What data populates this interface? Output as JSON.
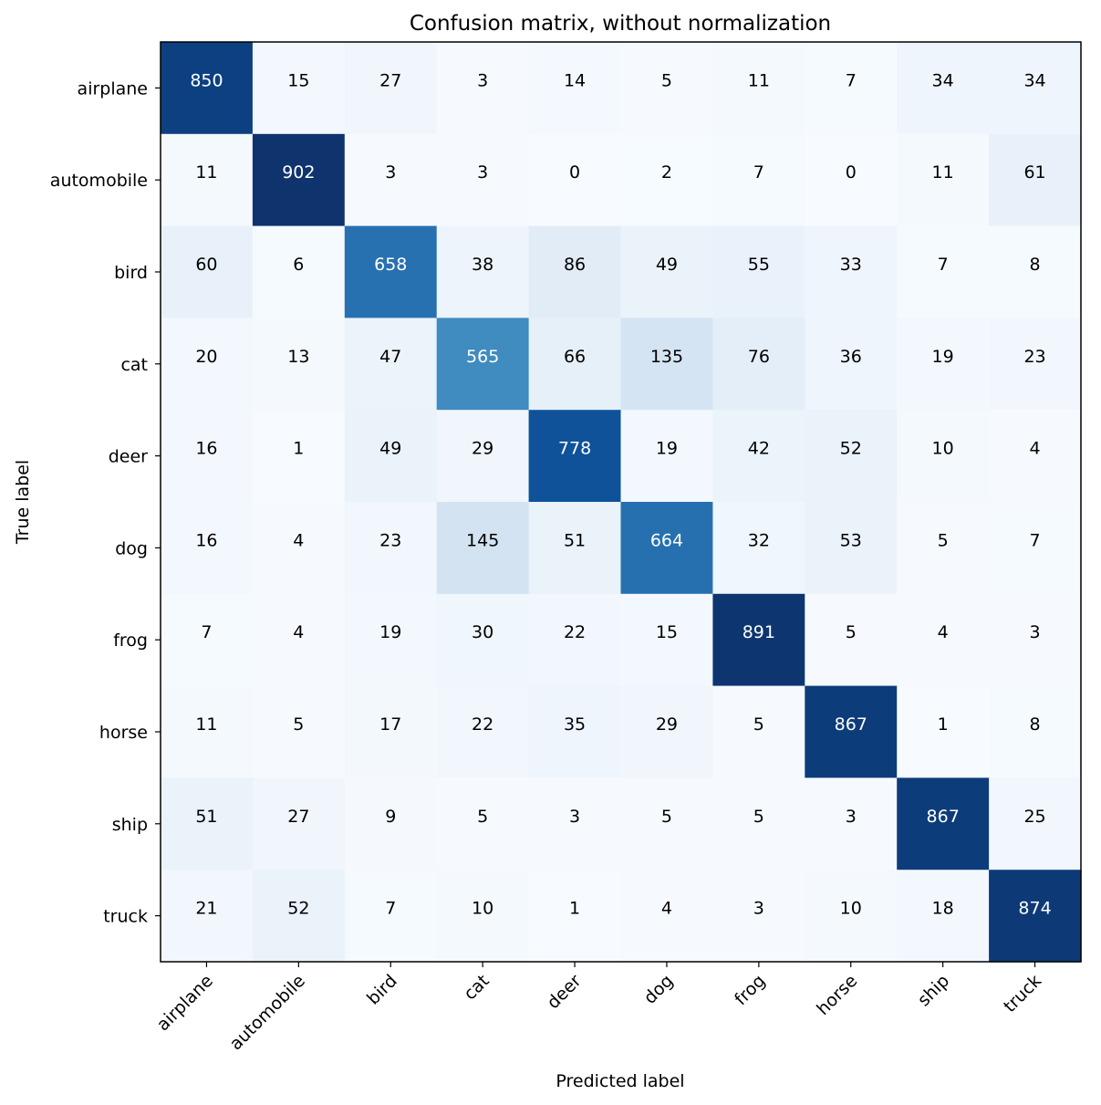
{
  "chart_data": {
    "type": "heatmap",
    "title": "Confusion matrix, without normalization",
    "xlabel": "Predicted label",
    "ylabel": "True label",
    "row_labels": [
      "airplane",
      "automobile",
      "bird",
      "cat",
      "deer",
      "dog",
      "frog",
      "horse",
      "ship",
      "truck"
    ],
    "col_labels": [
      "airplane",
      "automobile",
      "bird",
      "cat",
      "deer",
      "dog",
      "frog",
      "horse",
      "ship",
      "truck"
    ],
    "values": [
      [
        850,
        15,
        27,
        3,
        14,
        5,
        11,
        7,
        34,
        34
      ],
      [
        11,
        902,
        3,
        3,
        0,
        2,
        7,
        0,
        11,
        61
      ],
      [
        60,
        6,
        658,
        38,
        86,
        49,
        55,
        33,
        7,
        8
      ],
      [
        20,
        13,
        47,
        565,
        66,
        135,
        76,
        36,
        19,
        23
      ],
      [
        16,
        1,
        49,
        29,
        778,
        19,
        42,
        52,
        10,
        4
      ],
      [
        16,
        4,
        23,
        145,
        51,
        664,
        32,
        53,
        5,
        7
      ],
      [
        7,
        4,
        19,
        30,
        22,
        15,
        891,
        5,
        4,
        3
      ],
      [
        11,
        5,
        17,
        22,
        35,
        29,
        5,
        867,
        1,
        8
      ],
      [
        51,
        27,
        9,
        5,
        3,
        5,
        5,
        3,
        867,
        25
      ],
      [
        21,
        52,
        7,
        10,
        1,
        4,
        3,
        10,
        18,
        874
      ]
    ],
    "colormap": "Blues",
    "value_range": [
      0,
      902
    ],
    "text_color_dark": "#000000",
    "text_color_light": "#ffffff",
    "grid": false
  }
}
